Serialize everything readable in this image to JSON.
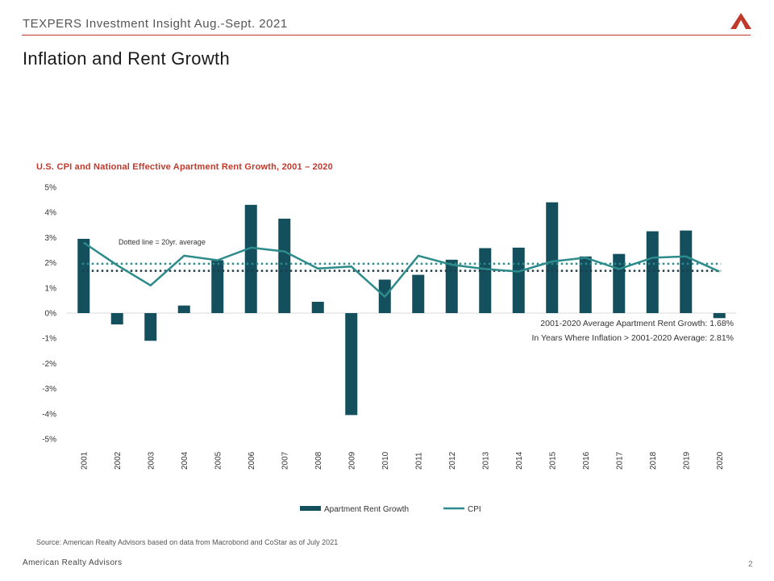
{
  "header": {
    "text": "TEXPERS Investment Insight Aug.-Sept. 2021",
    "logo_icon": "ara-logo-icon"
  },
  "page_title": "Inflation and Rent Growth",
  "chart_title": "U.S. CPI and National Effective Apartment Rent Growth, 2001 – 2020",
  "source": "Source: American Realty Advisors based on data from Macrobond and CoStar as of July 2021",
  "footer": {
    "left": "American Realty Advisors",
    "page_number": "2"
  },
  "chart_data": {
    "type": "bar",
    "categories": [
      "2001",
      "2002",
      "2003",
      "2004",
      "2005",
      "2006",
      "2007",
      "2008",
      "2009",
      "2010",
      "2011",
      "2012",
      "2013",
      "2014",
      "2015",
      "2016",
      "2017",
      "2018",
      "2019",
      "2020"
    ],
    "series": [
      {
        "name": "Apartment Rent Growth",
        "type": "bar",
        "color": "#134f5c",
        "values": [
          2.95,
          -0.45,
          -1.1,
          0.3,
          2.1,
          4.3,
          3.75,
          0.45,
          -4.05,
          1.33,
          1.52,
          2.12,
          2.58,
          2.6,
          4.4,
          2.25,
          2.35,
          3.25,
          3.28,
          -0.2
        ]
      },
      {
        "name": "CPI",
        "type": "line",
        "color": "#2e8b8b",
        "values": [
          2.8,
          1.9,
          1.1,
          2.28,
          2.1,
          2.6,
          2.45,
          1.77,
          1.85,
          0.65,
          2.28,
          1.92,
          1.75,
          1.65,
          2.05,
          2.2,
          1.75,
          2.2,
          2.25,
          1.65
        ]
      }
    ],
    "reference_lines": [
      {
        "value": 1.96,
        "color": "#2e8b8b",
        "style": "dotted"
      },
      {
        "value": 1.68,
        "color": "#1f3c47",
        "style": "dotted"
      }
    ],
    "ylim": [
      -5,
      5
    ],
    "yticks": [
      "5%",
      "4%",
      "3%",
      "2%",
      "1%",
      "0%",
      "-1%",
      "-2%",
      "-3%",
      "-4%",
      "-5%"
    ],
    "annotations": {
      "dotted_note": "Dotted line = 20yr. average",
      "average_line1": "2001-2020  Average Apartment Rent Growth: 1.68%",
      "average_line2": "In Years Where Inflation > 2001-2020 Average: 2.81%"
    },
    "legend_placement": "bottom-center",
    "grid": false
  }
}
